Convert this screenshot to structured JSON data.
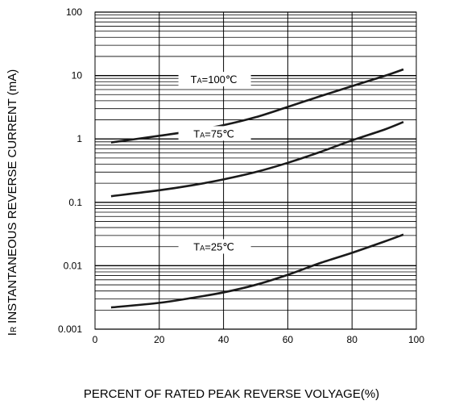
{
  "chart_data": {
    "type": "line",
    "title": "",
    "xlabel": "PERCENT OF RATED PEAK REVERSE VOLYAGE(%)",
    "ylabel_symbol": "I",
    "ylabel_subscript": "R",
    "ylabel_text": "INSTANTANEOUS REVERSE CURRENT (mA)",
    "xlim": [
      0,
      100
    ],
    "ylim": [
      0.001,
      100
    ],
    "yscale": "log",
    "grid": true,
    "x_ticks": [
      "0",
      "20",
      "40",
      "60",
      "80",
      "100"
    ],
    "y_ticks": [
      "0.001",
      "0.01",
      "0.1",
      "1",
      "10",
      "100"
    ],
    "series": [
      {
        "name": "TA=100℃",
        "label_prefix": "T",
        "label_sub": "A",
        "label_suffix": "=100℃",
        "x": [
          5,
          20,
          30,
          40,
          50,
          60,
          70,
          80,
          90,
          96
        ],
        "y": [
          0.88,
          1.12,
          1.33,
          1.65,
          2.2,
          3.2,
          4.7,
          6.8,
          9.8,
          12.5
        ]
      },
      {
        "name": "TA=75℃",
        "label_prefix": "T",
        "label_sub": "A",
        "label_suffix": "=75℃",
        "x": [
          5,
          20,
          30,
          40,
          50,
          60,
          70,
          80,
          90,
          96
        ],
        "y": [
          0.125,
          0.155,
          0.185,
          0.23,
          0.3,
          0.42,
          0.62,
          0.95,
          1.4,
          1.85
        ]
      },
      {
        "name": "TA=25℃",
        "label_prefix": "T",
        "label_sub": "A",
        "label_suffix": "=25℃",
        "x": [
          5,
          20,
          30,
          40,
          50,
          60,
          70,
          80,
          90,
          96
        ],
        "y": [
          0.0022,
          0.0026,
          0.0031,
          0.0038,
          0.005,
          0.0072,
          0.011,
          0.016,
          0.024,
          0.031
        ]
      }
    ]
  }
}
